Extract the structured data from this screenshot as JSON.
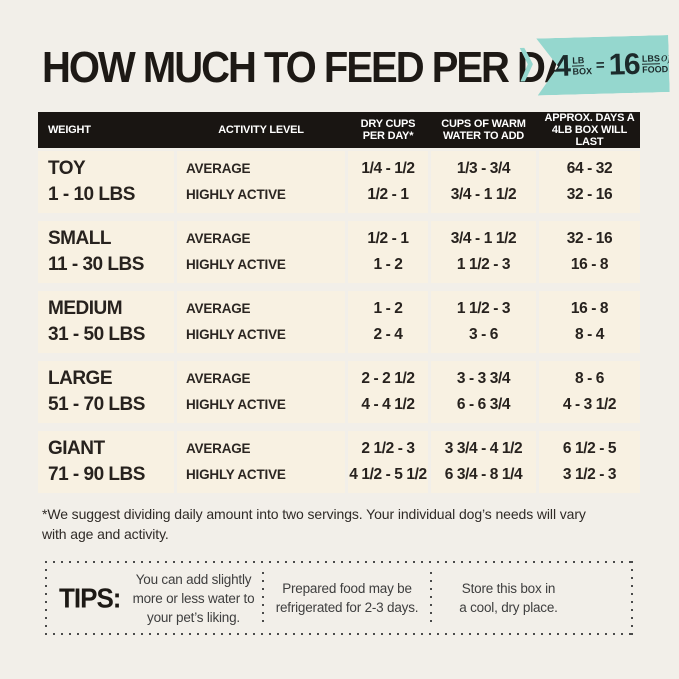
{
  "title": "HOW MUCH TO FEED PER DAY",
  "badge": {
    "qty": "4",
    "qty_top": "LB",
    "qty_bottom": "BOX",
    "equals": "=",
    "result": "16",
    "result_top": "LBS",
    "result_script": "of",
    "result_bottom": "FOOD!"
  },
  "table": {
    "headers": {
      "weight": "WEIGHT",
      "activity": "ACTIVITY LEVEL",
      "dry_cups": "DRY CUPS\nPER DAY*",
      "water": "CUPS OF WARM\nWATER TO ADD",
      "days": "APPROX. DAYS A\n4LB BOX WILL LAST"
    },
    "activity_labels": {
      "average": "AVERAGE",
      "highly_active": "HIGHLY ACTIVE"
    },
    "rows": [
      {
        "weight_name": "TOY",
        "weight_range": "1 - 10 LBS",
        "average": {
          "dry": "1/4 - 1/2",
          "water": "1/3 - 3/4",
          "days": "64 - 32"
        },
        "highly_active": {
          "dry": "1/2 - 1",
          "water": "3/4 - 1 1/2",
          "days": "32 - 16"
        }
      },
      {
        "weight_name": "SMALL",
        "weight_range": "11 - 30 LBS",
        "average": {
          "dry": "1/2 - 1",
          "water": "3/4 - 1 1/2",
          "days": "32 - 16"
        },
        "highly_active": {
          "dry": "1 - 2",
          "water": "1 1/2 - 3",
          "days": "16 - 8"
        }
      },
      {
        "weight_name": "MEDIUM",
        "weight_range": "31 - 50 LBS",
        "average": {
          "dry": "1 - 2",
          "water": "1 1/2 - 3",
          "days": "16 - 8"
        },
        "highly_active": {
          "dry": "2 - 4",
          "water": "3 - 6",
          "days": "8 - 4"
        }
      },
      {
        "weight_name": "LARGE",
        "weight_range": "51 - 70 LBS",
        "average": {
          "dry": "2 - 2 1/2",
          "water": "3 - 3 3/4",
          "days": "8 - 6"
        },
        "highly_active": {
          "dry": "4 - 4 1/2",
          "water": "6 - 6 3/4",
          "days": "4 - 3 1/2"
        }
      },
      {
        "weight_name": "GIANT",
        "weight_range": "71 - 90 LBS",
        "average": {
          "dry": "2 1/2 - 3",
          "water": "3 3/4 - 4 1/2",
          "days": "6 1/2 - 5"
        },
        "highly_active": {
          "dry": "4 1/2 - 5 1/2",
          "water": "6 3/4 - 8 1/4",
          "days": "3 1/2 - 3"
        }
      }
    ]
  },
  "footnote": "*We suggest dividing daily amount into two servings. Your individual dog’s needs will vary\nwith age and activity.",
  "tips": {
    "label": "TIPS:",
    "items": [
      "You can add slightly\nmore or less water to\nyour pet’s liking.",
      "Prepared food may be\nrefrigerated for 2-3 days.",
      "Store this box in\na cool, dry place."
    ]
  },
  "colors": {
    "background": "#f2efe9",
    "row_background": "#f8f1e2",
    "header_bar": "#191512",
    "badge_teal": "#95d7ce",
    "text": "#27221e"
  }
}
